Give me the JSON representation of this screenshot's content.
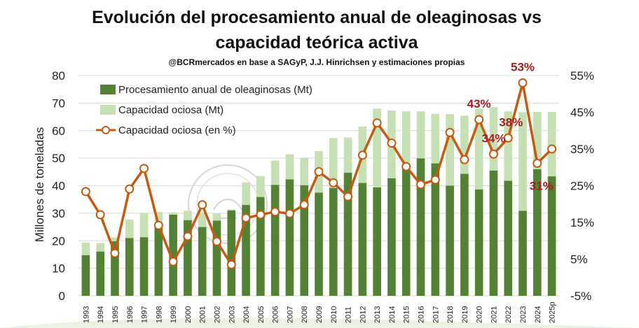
{
  "chart_data": {
    "type": "bar+line",
    "title": "Evolución del procesamiento anual de oleaginosas vs",
    "title_line2": "capacidad teórica activa",
    "subtitle": "@BCRmercados en base a SAGyP, J.J. Hinrichsen y estimaciones propias",
    "ylabel": "Millones de toneladas",
    "ylim": [
      0,
      80
    ],
    "y_ticks": [
      "0",
      "10",
      "20",
      "30",
      "40",
      "50",
      "60",
      "70",
      "80"
    ],
    "y2lim": [
      -5,
      55
    ],
    "y2_ticks": [
      "-5%",
      "5%",
      "15%",
      "25%",
      "35%",
      "45%",
      "55%"
    ],
    "categories": [
      "1993",
      "1994",
      "1995",
      "1996",
      "1997",
      "1998",
      "1999",
      "2000",
      "2001",
      "2002",
      "2003",
      "2004",
      "2005",
      "2006",
      "2007",
      "2008",
      "2009",
      "2010",
      "2011",
      "2012",
      "2013",
      "2014",
      "2015",
      "2016",
      "2017",
      "2018",
      "2019",
      "2020",
      "2021",
      "2022",
      "2023",
      "2024",
      "2025p"
    ],
    "series": [
      {
        "name": "Procesamiento anual de oleaginosas (Mt)",
        "type": "bar",
        "color": "#548235",
        "values": [
          14.8,
          16.1,
          19.8,
          21.0,
          21.3,
          26.5,
          29.5,
          27.5,
          25.0,
          27.3,
          31.0,
          33.0,
          35.9,
          40.3,
          42.3,
          40.2,
          37.5,
          39.2,
          44.7,
          41.0,
          39.4,
          42.7,
          46.8,
          49.9,
          48.1,
          40.0,
          44.3,
          38.6,
          45.5,
          41.8,
          30.9,
          46.0,
          43.4
        ]
      },
      {
        "name": "Capacidad ociosa (Mt)",
        "type": "bar",
        "color": "#c6e0b4",
        "values": [
          4.6,
          3.1,
          1.4,
          6.7,
          8.8,
          4.0,
          0.8,
          3.4,
          5.3,
          2.6,
          0.4,
          8.2,
          7.6,
          8.8,
          9.1,
          9.8,
          15.1,
          18.1,
          12.8,
          20.5,
          28.6,
          24.6,
          20.2,
          17.1,
          18.0,
          26.0,
          21.1,
          29.4,
          23.0,
          25.2,
          35.8,
          20.8,
          23.4
        ]
      },
      {
        "name": "Capacidad ociosa (en %)",
        "type": "line",
        "color": "#c55a11",
        "values": [
          23.4,
          17.1,
          6.6,
          24.1,
          29.7,
          14.2,
          4.3,
          11.2,
          19.8,
          9.8,
          3.5,
          16.2,
          17.1,
          17.9,
          17.4,
          19.8,
          28.8,
          25.8,
          22.0,
          33.3,
          42.1,
          36.6,
          30.2,
          25.3,
          26.6,
          39.5,
          32.1,
          43.0,
          33.6,
          38.0,
          53.0,
          31.1,
          35.0
        ]
      }
    ],
    "annotations": [
      {
        "category": "2020",
        "text": "43%"
      },
      {
        "category": "2021",
        "text": "34%"
      },
      {
        "category": "2022",
        "text": "38%"
      },
      {
        "category": "2023",
        "text": "53%"
      },
      {
        "category": "2024",
        "text": "31%"
      }
    ],
    "legend": "top-left, inside plot"
  }
}
